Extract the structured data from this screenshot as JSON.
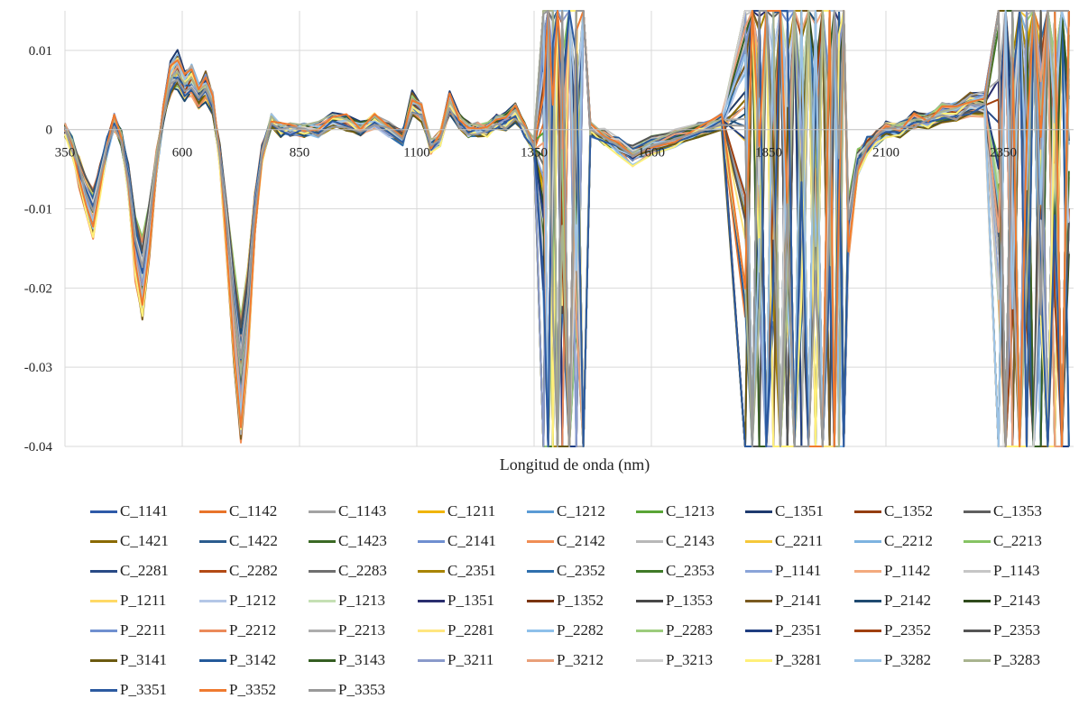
{
  "chart_data": {
    "type": "line",
    "title": "",
    "xlabel": "Longitud de onda (nm)",
    "ylabel": "",
    "xlim": [
      350,
      2500
    ],
    "ylim": [
      -0.04,
      0.015
    ],
    "x_ticks": [
      350,
      600,
      850,
      1100,
      1350,
      1600,
      1850,
      2100,
      2350
    ],
    "x_tick_labels": [
      "350",
      "600",
      "850",
      "1100",
      "1350",
      "1600",
      "1850",
      "2100",
      "2350"
    ],
    "y_ticks": [
      0.01,
      0,
      -0.01,
      -0.02,
      -0.03,
      -0.04
    ],
    "y_tick_labels": [
      "0.01",
      "0",
      "-0.01",
      "-0.02",
      "-0.03",
      "-0.04"
    ],
    "grid": true,
    "legend_position": "bottom",
    "base_profile": {
      "x": [
        350,
        365,
        380,
        395,
        410,
        425,
        440,
        455,
        470,
        485,
        500,
        515,
        530,
        545,
        560,
        575,
        590,
        605,
        620,
        635,
        650,
        665,
        680,
        695,
        710,
        725,
        740,
        755,
        770,
        790,
        810,
        830,
        860,
        890,
        920,
        950,
        980,
        1010,
        1040,
        1070,
        1090,
        1110,
        1130,
        1150,
        1170,
        1190,
        1210,
        1230,
        1250,
        1270,
        1290,
        1310,
        1330,
        1350,
        1370,
        1390,
        1410,
        1440,
        1470,
        1500,
        1530,
        1560,
        1600,
        1650,
        1700,
        1750,
        1800,
        1830,
        1860,
        1890,
        1920,
        1950,
        1980,
        2000,
        2020,
        2040,
        2060,
        2080,
        2100,
        2130,
        2160,
        2190,
        2220,
        2250,
        2280,
        2310,
        2340,
        2370,
        2400,
        2430,
        2460,
        2490
      ],
      "y": [
        0.0,
        -0.002,
        -0.005,
        -0.008,
        -0.01,
        -0.006,
        -0.002,
        0.001,
        -0.001,
        -0.006,
        -0.014,
        -0.018,
        -0.012,
        -0.004,
        0.002,
        0.006,
        0.007,
        0.005,
        0.006,
        0.004,
        0.005,
        0.003,
        -0.003,
        -0.012,
        -0.022,
        -0.03,
        -0.022,
        -0.01,
        -0.003,
        0.001,
        0.0,
        0.0,
        0.0,
        0.0,
        0.001,
        0.001,
        0.0,
        0.001,
        0.0,
        -0.001,
        0.003,
        0.002,
        -0.002,
        -0.001,
        0.003,
        0.001,
        0.0,
        0.0,
        0.0,
        0.001,
        0.001,
        0.002,
        0.0,
        -0.002,
        -0.01,
        0.01,
        -0.01,
        -0.003,
        0.0,
        -0.001,
        -0.002,
        -0.003,
        -0.002,
        -0.001,
        0.0,
        0.001,
        0.002,
        0.001,
        0.0,
        -0.03,
        0.01,
        -0.01,
        0.002,
        -0.002,
        -0.012,
        -0.004,
        -0.002,
        -0.001,
        0.0,
        0.0,
        0.001,
        0.001,
        0.002,
        0.002,
        0.003,
        0.003,
        0.002,
        0.004,
        0.003,
        0.002,
        0.0,
        0.001
      ]
    },
    "noise_bands": [
      [
        1360,
        1460
      ],
      [
        1800,
        2000
      ],
      [
        2330,
        2500
      ]
    ],
    "series": [
      {
        "name": "C_1141",
        "color": "#2e5aa8"
      },
      {
        "name": "C_1142",
        "color": "#e8742a"
      },
      {
        "name": "C_1143",
        "color": "#a3a3a3"
      },
      {
        "name": "C_1211",
        "color": "#f0b400"
      },
      {
        "name": "C_1212",
        "color": "#5b9bd5"
      },
      {
        "name": "C_1213",
        "color": "#5aa537"
      },
      {
        "name": "C_1351",
        "color": "#1f3a6e"
      },
      {
        "name": "C_1352",
        "color": "#943d10"
      },
      {
        "name": "C_1353",
        "color": "#5f5f5f"
      },
      {
        "name": "C_1421",
        "color": "#8a6a00"
      },
      {
        "name": "C_1422",
        "color": "#2b5c8e"
      },
      {
        "name": "C_1423",
        "color": "#3b6a25"
      },
      {
        "name": "C_2141",
        "color": "#6f8fd0"
      },
      {
        "name": "C_2142",
        "color": "#f08e55"
      },
      {
        "name": "C_2143",
        "color": "#b8b8b8"
      },
      {
        "name": "C_2211",
        "color": "#f5c83a"
      },
      {
        "name": "C_2212",
        "color": "#7db3e0"
      },
      {
        "name": "C_2213",
        "color": "#87c464"
      },
      {
        "name": "C_2281",
        "color": "#294a85"
      },
      {
        "name": "C_2282",
        "color": "#b34a15"
      },
      {
        "name": "C_2283",
        "color": "#6f6f6f"
      },
      {
        "name": "C_2351",
        "color": "#a88400"
      },
      {
        "name": "C_2352",
        "color": "#2f6fad"
      },
      {
        "name": "C_2353",
        "color": "#3f7a28"
      },
      {
        "name": "P_1141",
        "color": "#8aa4d8"
      },
      {
        "name": "P_1142",
        "color": "#f3aa7e"
      },
      {
        "name": "P_1143",
        "color": "#c6c6c6"
      },
      {
        "name": "P_1211",
        "color": "#ffd966"
      },
      {
        "name": "P_1212",
        "color": "#b4c7e7"
      },
      {
        "name": "P_1213",
        "color": "#c5e0b4"
      },
      {
        "name": "P_1351",
        "color": "#2a2e6e"
      },
      {
        "name": "P_1352",
        "color": "#7a3410"
      },
      {
        "name": "P_1353",
        "color": "#484848"
      },
      {
        "name": "P_2141",
        "color": "#7a5a20"
      },
      {
        "name": "P_2142",
        "color": "#1f4a70"
      },
      {
        "name": "P_2143",
        "color": "#2f4a1c"
      },
      {
        "name": "P_2211",
        "color": "#7090d0"
      },
      {
        "name": "P_2212",
        "color": "#eb8a5a"
      },
      {
        "name": "P_2213",
        "color": "#adadad"
      },
      {
        "name": "P_2281",
        "color": "#ffe680"
      },
      {
        "name": "P_2282",
        "color": "#8ec0ea"
      },
      {
        "name": "P_2283",
        "color": "#9ccc7c"
      },
      {
        "name": "P_2351",
        "color": "#1f3d80"
      },
      {
        "name": "P_2352",
        "color": "#a0400f"
      },
      {
        "name": "P_2353",
        "color": "#555555"
      },
      {
        "name": "P_3141",
        "color": "#6b5a10"
      },
      {
        "name": "P_3142",
        "color": "#245a9a"
      },
      {
        "name": "P_3143",
        "color": "#355e22"
      },
      {
        "name": "P_3211",
        "color": "#8a9acb"
      },
      {
        "name": "P_3212",
        "color": "#e9a07a"
      },
      {
        "name": "P_3213",
        "color": "#d0d0d0"
      },
      {
        "name": "P_3281",
        "color": "#fff07a"
      },
      {
        "name": "P_3282",
        "color": "#9cc3e6"
      },
      {
        "name": "P_3283",
        "color": "#a9b48f"
      },
      {
        "name": "P_3351",
        "color": "#2c5aa0"
      },
      {
        "name": "P_3352",
        "color": "#ef7a30"
      },
      {
        "name": "P_3353",
        "color": "#999999"
      }
    ]
  }
}
